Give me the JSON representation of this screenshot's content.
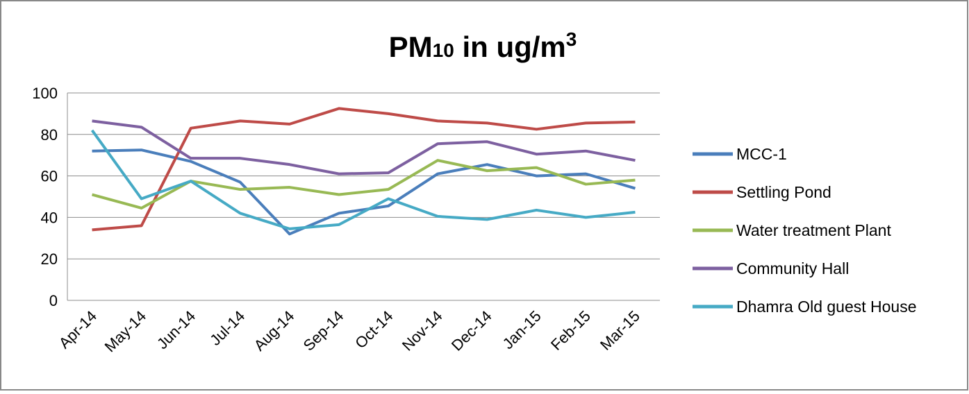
{
  "chart_data": {
    "type": "line",
    "title_parts": [
      "PM",
      "10",
      " in ug/m",
      "3"
    ],
    "categories": [
      "Apr-14",
      "May-14",
      "Jun-14",
      "Jul-14",
      "Aug-14",
      "Sep-14",
      "Oct-14",
      "Nov-14",
      "Dec-14",
      "Jan-15",
      "Feb-15",
      "Mar-15"
    ],
    "series": [
      {
        "name": "MCC-1",
        "color": "#4a7ebb",
        "values": [
          72,
          72.5,
          67,
          57,
          32,
          42,
          45.5,
          61,
          65.5,
          60,
          61,
          54
        ]
      },
      {
        "name": "Settling Pond",
        "color": "#be4b48",
        "values": [
          34,
          36,
          83,
          86.5,
          85,
          92.5,
          90,
          86.5,
          85.5,
          82.5,
          85.5,
          86
        ]
      },
      {
        "name": "Water treatment Plant",
        "color": "#98b954",
        "values": [
          51,
          44.5,
          57.5,
          53.5,
          54.5,
          51,
          53.5,
          67.5,
          62.5,
          64,
          56,
          58
        ]
      },
      {
        "name": "Community Hall",
        "color": "#7d60a0",
        "values": [
          86.5,
          83.5,
          68.5,
          68.5,
          65.5,
          61,
          61.5,
          75.5,
          76.5,
          70.5,
          72,
          67.5
        ]
      },
      {
        "name": "Dhamra Old guest House",
        "color": "#46aac5",
        "values": [
          82,
          49,
          57.5,
          42,
          34.5,
          36.5,
          49,
          40.5,
          39,
          43.5,
          40,
          42.5
        ]
      }
    ],
    "ylim": [
      0,
      100
    ],
    "yticks": [
      0,
      20,
      40,
      60,
      80,
      100
    ],
    "grid": true,
    "legend": "right"
  }
}
